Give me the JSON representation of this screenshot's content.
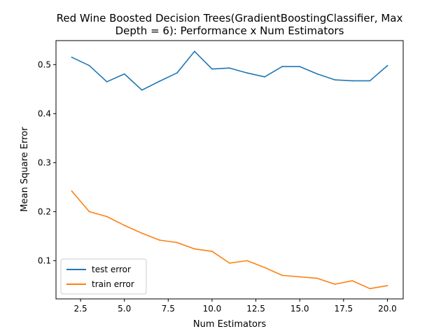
{
  "chart_data": {
    "type": "line",
    "title": [
      "Red Wine Boosted Decision Trees(GradientBoostingClassifier, Max",
      "Depth = 6): Performance x Num Estimators"
    ],
    "xlabel": "Num Estimators",
    "ylabel": "Mean Square Error",
    "xlim": [
      1.1,
      20.9
    ],
    "ylim": [
      0.022,
      0.549
    ],
    "xticks": [
      2.5,
      5.0,
      7.5,
      10.0,
      12.5,
      15.0,
      17.5,
      20.0
    ],
    "xtick_labels": [
      "2.5",
      "5.0",
      "7.5",
      "10.0",
      "12.5",
      "15.0",
      "17.5",
      "20.0"
    ],
    "yticks": [
      0.1,
      0.2,
      0.3,
      0.4,
      0.5
    ],
    "ytick_labels": [
      "0.1",
      "0.2",
      "0.3",
      "0.4",
      "0.5"
    ],
    "grid": false,
    "legend_position": "lower-left",
    "x": [
      2,
      3,
      4,
      5,
      6,
      7,
      8,
      9,
      10,
      11,
      12,
      13,
      14,
      15,
      16,
      17,
      18,
      19,
      20
    ],
    "series": [
      {
        "name": "test error",
        "color": "#1f77b4",
        "values": [
          0.515,
          0.498,
          0.465,
          0.481,
          0.448,
          0.466,
          0.483,
          0.527,
          0.491,
          0.493,
          0.483,
          0.475,
          0.496,
          0.496,
          0.481,
          0.469,
          0.467,
          0.467,
          0.498
        ]
      },
      {
        "name": "train error",
        "color": "#ff7f0e",
        "values": [
          0.242,
          0.2,
          0.19,
          0.172,
          0.156,
          0.142,
          0.137,
          0.124,
          0.119,
          0.095,
          0.1,
          0.086,
          0.07,
          0.067,
          0.064,
          0.052,
          0.059,
          0.043,
          0.049
        ]
      }
    ]
  }
}
